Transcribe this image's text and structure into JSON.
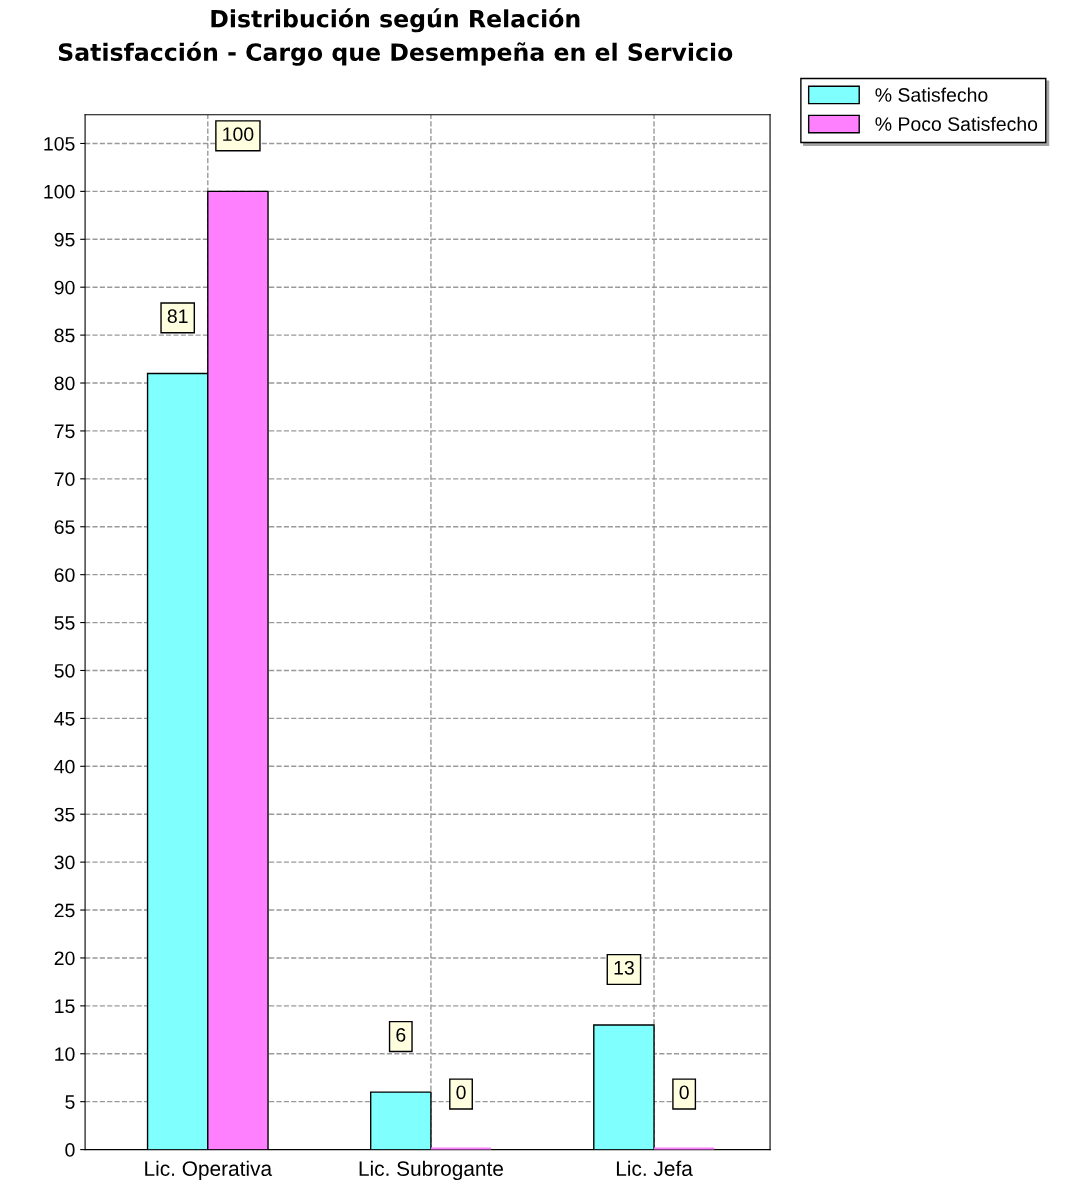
{
  "chart_data": {
    "type": "bar",
    "title": "Distribución según Relación\nSatisfacción - Cargo que Desempeña en el Servicio",
    "categories": [
      "Lic. Operativa",
      "Lic. Subrogante",
      "Lic. Jefa"
    ],
    "series": [
      {
        "name": "% Satisfecho",
        "color": "#80ffff",
        "values": [
          81,
          6,
          13
        ]
      },
      {
        "name": "% Poco Satisfecho",
        "color": "#ff80ff",
        "values": [
          100,
          0,
          0
        ]
      }
    ],
    "ylim": [
      0,
      108
    ],
    "yticks": [
      0,
      5,
      10,
      15,
      20,
      25,
      30,
      35,
      40,
      45,
      50,
      55,
      60,
      65,
      70,
      75,
      80,
      85,
      90,
      95,
      100,
      105
    ],
    "grid": true,
    "legend": "top right",
    "data_labels": true
  }
}
